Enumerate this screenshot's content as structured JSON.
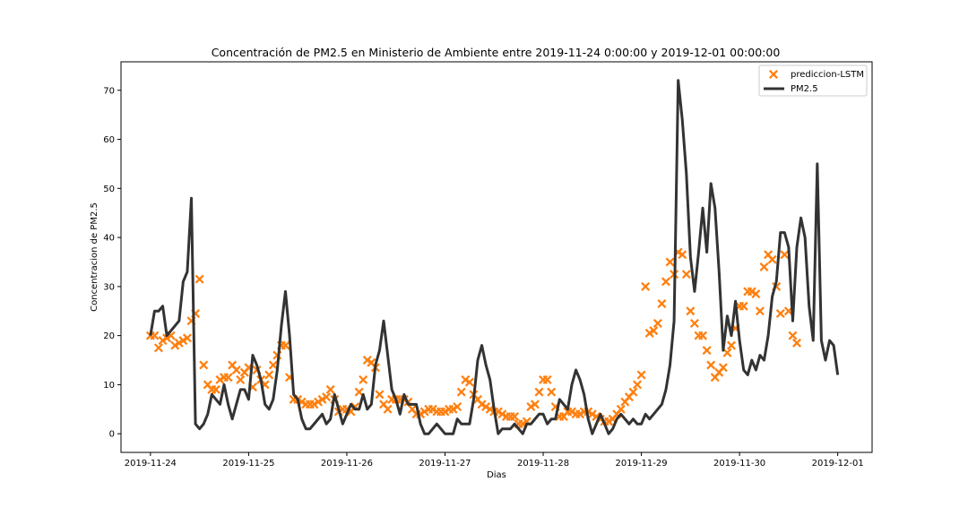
{
  "chart_data": {
    "type": "line",
    "title": "Concentración de PM2.5 en Ministerio de Ambiente entre 2019-11-24 0:00:00 y 2019-12-01 00:00:00",
    "xlabel": "Dias",
    "ylabel": "Concentracion de PM2.5",
    "xlim": [
      -0.3,
      7.35
    ],
    "ylim": [
      -3.8,
      75.8
    ],
    "x_tick_labels": [
      "2019-11-24",
      "2019-11-25",
      "2019-11-26",
      "2019-11-27",
      "2019-11-28",
      "2019-11-29",
      "2019-11-30",
      "2019-12-01"
    ],
    "y_ticks": [
      0,
      10,
      20,
      30,
      40,
      50,
      60,
      70
    ],
    "grid": false,
    "legend_position": "top-right",
    "series": [
      {
        "name": "prediccion-LSTM",
        "kind": "scatter",
        "marker": "X",
        "color": "#ff7f0e",
        "x_step_days": 0.041667,
        "values": [
          20,
          20,
          17.5,
          19,
          19.5,
          20,
          18,
          18.5,
          19,
          19.5,
          23,
          24.5,
          31.5,
          14,
          10,
          9,
          9,
          11,
          11.5,
          11.5,
          14,
          13,
          11,
          12.5,
          13.5,
          9.5,
          13,
          11,
          10,
          12,
          14,
          16,
          18,
          18,
          11.5,
          7,
          7,
          6.5,
          6,
          6,
          6,
          6.5,
          7,
          7.5,
          9,
          7,
          4.5,
          5,
          5,
          4.5,
          5.5,
          8.5,
          11,
          15,
          14.5,
          13.5,
          8,
          6,
          5,
          7,
          7,
          7,
          7,
          6.5,
          5,
          4,
          4,
          4.5,
          5,
          5,
          4.5,
          4.5,
          4.5,
          5,
          5,
          5.5,
          8.5,
          11,
          10.5,
          8,
          7,
          6,
          5.5,
          5,
          4.5,
          4.5,
          4,
          3.5,
          3.5,
          3.5,
          2,
          2,
          2.5,
          5.5,
          6,
          8.5,
          11,
          11,
          8.5,
          5.5,
          3.5,
          3.5,
          4.5,
          4.5,
          4,
          4,
          4.5,
          4.5,
          4,
          3.5,
          3,
          2.5,
          2.5,
          3,
          4,
          5,
          6.5,
          7.5,
          8.5,
          10,
          12,
          30,
          20.5,
          21,
          22.5,
          26.5,
          31,
          35,
          32.5,
          37,
          36.5,
          32.5,
          25,
          22.5,
          20,
          20,
          17,
          14,
          11.5,
          12.5,
          13.5,
          16.5,
          18,
          21.5,
          26,
          26,
          29,
          29,
          28.5,
          25,
          34,
          36.5,
          35.5,
          30,
          24.5,
          36.5,
          25,
          20,
          18.5
        ]
      },
      {
        "name": "PM2.5",
        "kind": "line",
        "color": "#333333",
        "x_step_days": 0.041667,
        "values": [
          20,
          25,
          25,
          26,
          20,
          21,
          22,
          23,
          31,
          33,
          48,
          2,
          1,
          2,
          4,
          8,
          7,
          6,
          10,
          6,
          3,
          6,
          9,
          9,
          7,
          16,
          14,
          11,
          6,
          5,
          7,
          13,
          22,
          29,
          20,
          8,
          7,
          3,
          1,
          1,
          2,
          3,
          4,
          2,
          3,
          8,
          5,
          2,
          4,
          6,
          5,
          5,
          8,
          5,
          6,
          14,
          17,
          23,
          16,
          9,
          7,
          4,
          8,
          6,
          6,
          6,
          2,
          0,
          0,
          1,
          2,
          1,
          0,
          0,
          0,
          3,
          2,
          2,
          2,
          7,
          15,
          18,
          14,
          11,
          5,
          0,
          1,
          1,
          1,
          2,
          1,
          0,
          2,
          2,
          3,
          4,
          4,
          2,
          3,
          3,
          7,
          6,
          5,
          10,
          13,
          11,
          8,
          3,
          0,
          2,
          4,
          2,
          0,
          1,
          3,
          4,
          3,
          2,
          3,
          2,
          2,
          4,
          3,
          4,
          5,
          6,
          9,
          14,
          23,
          72,
          64,
          53,
          36,
          29,
          37,
          46,
          37,
          51,
          46,
          33,
          17,
          24,
          20,
          27,
          19,
          13,
          12,
          15,
          13,
          16,
          15,
          20,
          28,
          31,
          41,
          41,
          38,
          23,
          38,
          44,
          40,
          26,
          19,
          55,
          19,
          15,
          19,
          18,
          12
        ]
      }
    ]
  }
}
